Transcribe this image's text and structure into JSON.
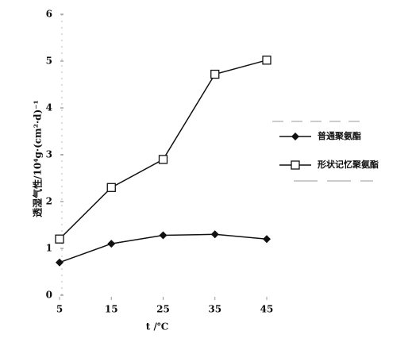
{
  "chart_data": {
    "type": "line",
    "x_label": "t /℃",
    "y_label": "透湿气性/10⁴g·(cm²·d)⁻¹",
    "x": [
      5,
      15,
      25,
      35,
      45
    ],
    "xlim": [
      5,
      45
    ],
    "xticks": [
      5,
      15,
      25,
      35,
      45
    ],
    "ylim": [
      0,
      6
    ],
    "yticks": [
      0,
      1,
      2,
      3,
      4,
      5,
      6
    ],
    "series": [
      {
        "name": "普通聚氨酯",
        "color": "#111111",
        "marker": "diamond",
        "values": [
          0.7,
          1.1,
          1.28,
          1.3,
          1.2
        ]
      },
      {
        "name": "形状记忆聚氨酯",
        "color": "#111111",
        "marker": "square",
        "values": [
          1.2,
          2.3,
          2.9,
          4.72,
          5.02
        ]
      }
    ]
  }
}
